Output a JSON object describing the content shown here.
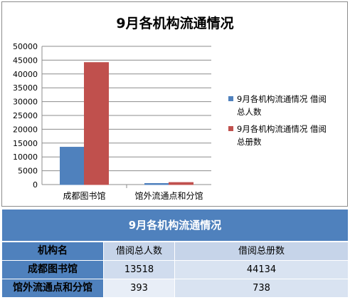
{
  "chart_data": {
    "type": "bar",
    "title": "9月各机构流通情况",
    "categories": [
      "成都图书馆",
      "馆外流通点和分馆"
    ],
    "series": [
      {
        "name": "9月各机构流通情况 借阅总人数",
        "values": [
          13518,
          393
        ],
        "color": "#4f81bd"
      },
      {
        "name": "9月各机构流通情况 借阅总册数",
        "values": [
          44134,
          738
        ],
        "color": "#c0504d"
      }
    ],
    "ylim": [
      0,
      50000
    ],
    "yticks": [
      0,
      5000,
      10000,
      15000,
      20000,
      25000,
      30000,
      35000,
      40000,
      45000,
      50000
    ],
    "grid": true,
    "legend_position": "right"
  },
  "legend": {
    "line1": [
      "9月各机构流通情况 借阅",
      "总人数"
    ],
    "line2": [
      "9月各机构流通情况 借阅",
      "总册数"
    ]
  },
  "table": {
    "title": "9月各机构流通情况",
    "headers": [
      "机构名",
      "借阅总人数",
      "借阅总册数"
    ],
    "rows": [
      {
        "name": "成都图书馆",
        "readers": "13518",
        "volumes": "44134"
      },
      {
        "name": "馆外流通点和分馆",
        "readers": "393",
        "volumes": "738"
      }
    ]
  }
}
